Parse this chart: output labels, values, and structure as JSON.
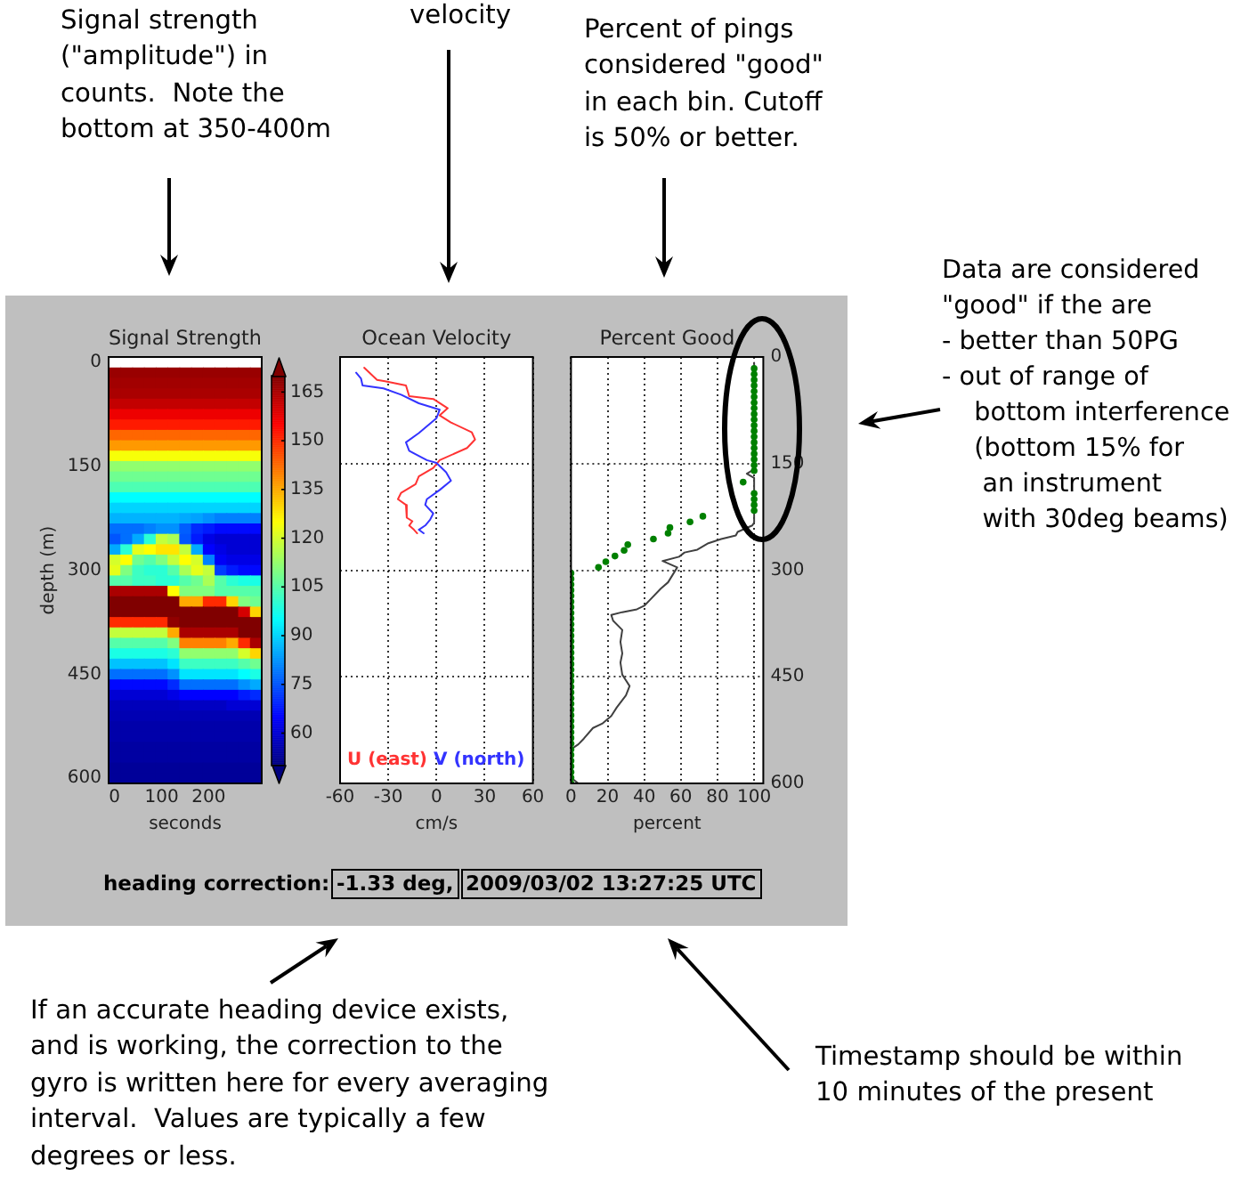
{
  "chart_data": [
    {
      "type": "heatmap",
      "title": "Signal Strength",
      "xlabel": "seconds",
      "ylabel": "depth (m)",
      "categories": [
        "0",
        null,
        null,
        null,
        "100",
        null,
        null,
        null,
        "200",
        null,
        null,
        null,
        null
      ],
      "y_categories": [
        "0",
        null,
        null,
        null,
        null,
        null,
        null,
        null,
        null,
        null,
        "150",
        null,
        null,
        null,
        null,
        null,
        null,
        null,
        null,
        null,
        "300",
        null,
        null,
        null,
        null,
        null,
        null,
        null,
        null,
        null,
        "450",
        null,
        null,
        null,
        null,
        null,
        null,
        null,
        null,
        null,
        "600"
      ],
      "cells": [
        [
          null,
          null,
          null,
          null,
          null,
          null,
          null,
          null,
          null,
          null,
          null,
          null,
          null
        ],
        [
          167,
          167,
          167,
          167,
          167,
          167,
          167,
          167,
          167,
          167,
          167,
          167,
          167
        ],
        [
          166,
          166,
          166,
          166,
          166,
          166,
          166,
          166,
          166,
          166,
          166,
          166,
          166
        ],
        [
          165,
          165,
          165,
          165,
          165,
          165,
          165,
          165,
          165,
          165,
          165,
          165,
          165
        ],
        [
          162,
          162,
          162,
          162,
          162,
          162,
          162,
          162,
          162,
          162,
          162,
          162,
          162
        ],
        [
          157,
          157,
          157,
          157,
          157,
          157,
          157,
          157,
          157,
          157,
          157,
          157,
          157
        ],
        [
          152,
          152,
          152,
          152,
          152,
          152,
          152,
          152,
          152,
          152,
          152,
          152,
          152
        ],
        [
          143,
          143,
          143,
          143,
          143,
          143,
          143,
          143,
          143,
          143,
          143,
          143,
          143
        ],
        [
          137,
          137,
          137,
          137,
          137,
          137,
          137,
          137,
          137,
          137,
          137,
          137,
          137
        ],
        [
          124,
          124,
          124,
          124,
          124,
          124,
          124,
          124,
          124,
          124,
          124,
          124,
          124
        ],
        [
          112,
          112,
          112,
          112,
          112,
          112,
          112,
          112,
          112,
          112,
          112,
          112,
          112
        ],
        [
          108,
          108,
          108,
          108,
          108,
          108,
          108,
          108,
          108,
          108,
          108,
          108,
          108
        ],
        [
          104,
          104,
          104,
          104,
          104,
          104,
          104,
          104,
          104,
          104,
          104,
          104,
          104
        ],
        [
          95,
          95,
          95,
          95,
          95,
          95,
          95,
          95,
          95,
          95,
          95,
          95,
          95
        ],
        [
          90,
          90,
          90,
          90,
          90,
          90,
          90,
          90,
          90,
          90,
          90,
          90,
          90
        ],
        [
          86,
          86,
          86,
          86,
          86,
          86,
          85,
          84,
          82,
          80,
          80,
          80,
          80
        ],
        [
          78,
          78,
          78,
          80,
          82,
          82,
          76,
          70,
          68,
          66,
          66,
          66,
          66
        ],
        [
          75,
          78,
          85,
          100,
          118,
          115,
          75,
          68,
          62,
          60,
          60,
          60,
          60
        ],
        [
          85,
          100,
          122,
          125,
          128,
          128,
          118,
          85,
          65,
          62,
          60,
          60,
          60
        ],
        [
          120,
          125,
          108,
          105,
          110,
          118,
          125,
          120,
          80,
          64,
          62,
          62,
          62
        ],
        [
          122,
          110,
          102,
          100,
          100,
          105,
          115,
          122,
          118,
          72,
          68,
          66,
          66
        ],
        [
          105,
          105,
          102,
          102,
          100,
          100,
          105,
          108,
          115,
          105,
          100,
          98,
          98
        ],
        [
          165,
          165,
          165,
          165,
          165,
          125,
          110,
          110,
          110,
          105,
          105,
          105,
          105
        ],
        [
          170,
          170,
          170,
          170,
          170,
          170,
          135,
          135,
          150,
          150,
          130,
          110,
          108
        ],
        [
          170,
          170,
          170,
          170,
          170,
          170,
          170,
          170,
          170,
          170,
          170,
          160,
          130
        ],
        [
          150,
          150,
          150,
          150,
          150,
          168,
          170,
          170,
          170,
          170,
          170,
          170,
          170
        ],
        [
          118,
          118,
          118,
          118,
          118,
          135,
          165,
          165,
          165,
          165,
          165,
          170,
          170
        ],
        [
          105,
          105,
          105,
          105,
          105,
          110,
          140,
          140,
          140,
          140,
          135,
          150,
          165
        ],
        [
          98,
          98,
          98,
          98,
          98,
          100,
          112,
          112,
          112,
          112,
          112,
          120,
          130
        ],
        [
          88,
          88,
          88,
          88,
          88,
          92,
          102,
          102,
          102,
          102,
          102,
          105,
          108
        ],
        [
          78,
          78,
          78,
          78,
          78,
          82,
          92,
          92,
          92,
          92,
          92,
          95,
          98
        ],
        [
          66,
          66,
          66,
          66,
          66,
          70,
          78,
          78,
          78,
          78,
          78,
          82,
          85
        ],
        [
          60,
          60,
          60,
          60,
          60,
          62,
          65,
          65,
          65,
          65,
          65,
          68,
          70
        ],
        [
          57,
          57,
          57,
          57,
          57,
          57,
          58,
          58,
          58,
          58,
          60,
          60,
          60
        ],
        [
          56,
          56,
          56,
          56,
          56,
          56,
          56,
          56,
          56,
          56,
          56,
          56,
          56
        ],
        [
          55,
          55,
          55,
          55,
          55,
          55,
          55,
          55,
          55,
          55,
          55,
          55,
          55
        ],
        [
          55,
          55,
          55,
          55,
          55,
          55,
          55,
          55,
          55,
          55,
          55,
          55,
          55
        ],
        [
          54,
          54,
          54,
          54,
          54,
          54,
          54,
          54,
          54,
          54,
          54,
          54,
          54
        ],
        [
          54,
          54,
          54,
          54,
          54,
          54,
          54,
          54,
          54,
          54,
          54,
          54,
          54
        ],
        [
          53,
          53,
          53,
          53,
          53,
          53,
          53,
          53,
          53,
          53,
          53,
          53,
          53
        ],
        [
          53,
          53,
          53,
          53,
          53,
          53,
          53,
          53,
          53,
          53,
          53,
          53,
          53
        ]
      ],
      "clim": [
        50,
        170
      ],
      "cticks": [
        60,
        75,
        90,
        105,
        120,
        135,
        150,
        165
      ]
    },
    {
      "type": "line",
      "title": "Ocean Velocity",
      "xlabel": "cm/s",
      "series": [
        {
          "name": "U (east)",
          "color": "#ff3333",
          "x": [
            -45,
            -37,
            -32,
            -19,
            -17,
            -2,
            7,
            2,
            9,
            22,
            24,
            19,
            2,
            -2,
            -11,
            -13,
            -22,
            -24,
            -19,
            -18,
            -19,
            -15,
            -17,
            -14,
            -12
          ],
          "values": [
            15,
            32,
            34,
            40,
            55,
            59,
            72,
            82,
            92,
            106,
            116,
            128,
            145,
            156,
            168,
            179,
            191,
            200,
            208,
            220,
            226,
            231,
            237,
            243,
            248
          ]
        },
        {
          "name": "V (north)",
          "color": "#3333ff",
          "x": [
            -50,
            -47,
            -46,
            -33,
            -22,
            -11,
            2,
            0,
            -11,
            -19,
            -17,
            -6,
            0,
            6,
            9,
            2,
            -6,
            -7,
            -2,
            -4,
            -7,
            -11,
            -8
          ],
          "values": [
            22,
            30,
            40,
            44,
            53,
            65,
            74,
            86,
            107,
            120,
            132,
            145,
            149,
            162,
            174,
            187,
            200,
            208,
            220,
            229,
            237,
            243,
            248
          ]
        }
      ],
      "xlim": [
        -60,
        60
      ],
      "xticks": [
        -60,
        -30,
        0,
        30,
        60
      ],
      "ylim": [
        600,
        0
      ],
      "yticks": [
        0,
        150,
        300,
        450,
        600
      ],
      "tick_labels": "x",
      "grid": true,
      "legend": "bottom left"
    },
    {
      "type": "line",
      "title": "Percent Good",
      "xlabel": "percent",
      "series": [
        {
          "color": "#404040",
          "x": [
            100,
            100,
            96,
            100,
            100,
            99,
            91,
            90,
            82,
            75,
            69,
            62,
            59,
            50,
            58,
            53,
            49,
            43,
            40,
            36,
            28,
            22,
            23,
            28,
            27,
            28,
            27,
            28,
            32,
            30,
            25,
            22,
            17,
            12,
            7,
            4,
            0,
            0,
            4
          ],
          "values": [
            8,
            158,
            164,
            170,
            233,
            237,
            246,
            251,
            256,
            262,
            271,
            275,
            281,
            287,
            296,
            317,
            326,
            342,
            350,
            355,
            359,
            363,
            371,
            384,
            401,
            417,
            430,
            447,
            463,
            476,
            493,
            505,
            516,
            522,
            537,
            545,
            552,
            592,
            600
          ]
        },
        {
          "type": "scatter",
          "color": "#008000",
          "marker": "circle",
          "x": [
            100,
            100,
            100,
            100,
            100,
            100,
            100,
            100,
            100,
            100,
            100,
            100,
            100,
            100,
            100,
            100,
            100,
            100,
            100,
            94,
            100,
            100,
            100,
            100,
            72,
            65,
            54,
            53,
            45,
            31,
            29,
            24,
            19,
            15,
            0,
            0,
            0,
            0,
            0,
            0,
            0,
            0,
            0,
            0,
            0,
            0,
            0,
            0,
            0,
            0,
            0,
            0,
            0,
            0,
            0,
            0,
            0,
            0,
            0,
            0,
            0,
            0,
            0,
            0,
            0,
            0,
            0,
            0,
            0,
            0,
            0,
            0
          ],
          "values": [
            16,
            24,
            32,
            40,
            48,
            56,
            64,
            72,
            80,
            88,
            96,
            104,
            112,
            120,
            128,
            136,
            144,
            152,
            160,
            176,
            192,
            200,
            208,
            216,
            224,
            232,
            240,
            248,
            256,
            264,
            272,
            280,
            288,
            296,
            304,
            312,
            320,
            328,
            336,
            344,
            352,
            360,
            368,
            376,
            384,
            392,
            400,
            408,
            416,
            424,
            432,
            440,
            448,
            456,
            464,
            472,
            480,
            488,
            496,
            504,
            512,
            520,
            528,
            536,
            544,
            552,
            560,
            568,
            576,
            584,
            592,
            600
          ]
        }
      ],
      "xlim": [
        0,
        105
      ],
      "xticks": [
        0,
        20,
        40,
        60,
        80,
        100
      ],
      "ylim": [
        600,
        0
      ],
      "yticks": [
        0,
        150,
        300,
        450,
        600
      ],
      "grid": true
    },
    {
      "type": "other",
      "annotations": [
        "Signal strength\n(\"amplitude\") in\ncounts.  Note the\nbottom at 350-400m",
        "velocity",
        "Percent of pings\nconsidered \"good\"\nin each bin. Cutoff\nis 50% or better.",
        "Data are considered\n\"good\" if the are\n- better than 50PG\n- out of range of\n    bottom interference\n    (bottom 15% for\n     an instrument\n     with 30deg beams)",
        "heading correction:",
        "-1.33 deg,",
        "2009/03/02 13:27:25 UTC",
        "If an accurate heading device exists,\nand is working, the correction to the\ngyro is written here for every averaging\ninterval.  Values are typically a few\ndegrees or less.",
        "Timestamp should be within\n10 minutes of the present"
      ]
    }
  ]
}
